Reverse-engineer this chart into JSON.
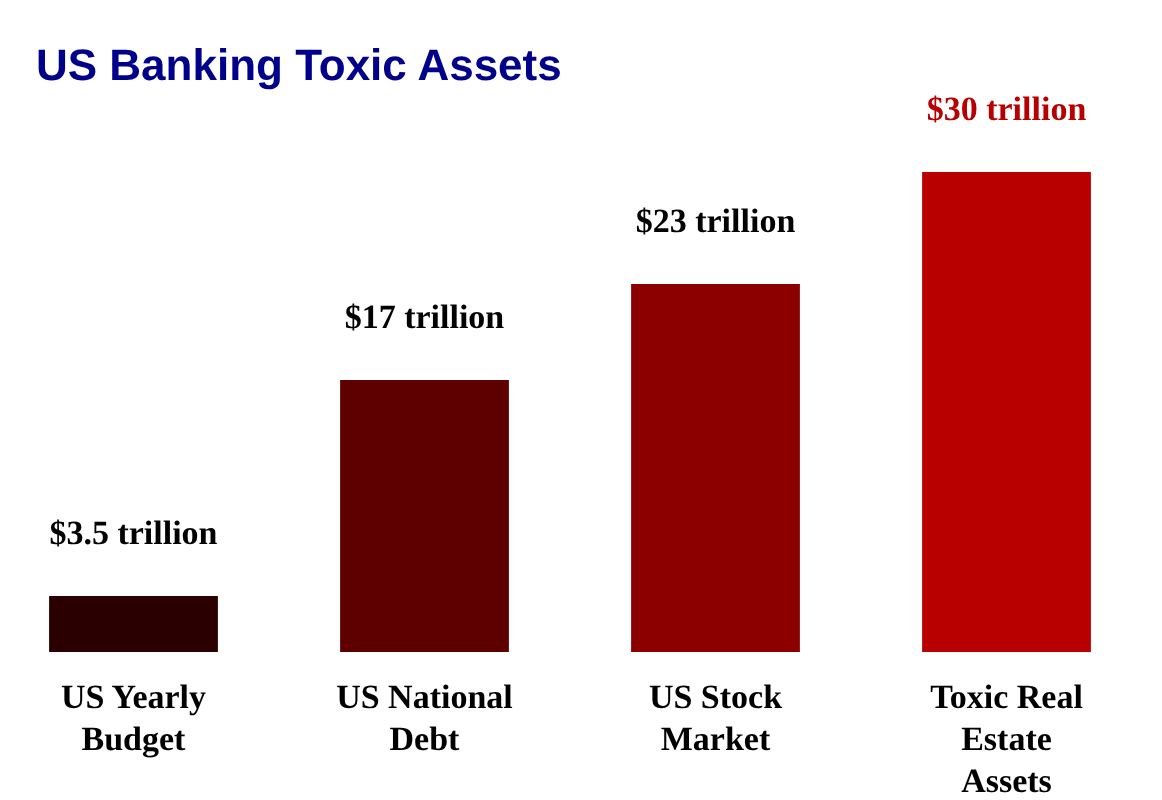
{
  "chart_data": {
    "type": "bar",
    "title": "US Banking Toxic Assets",
    "categories": [
      "US Yearly Budget",
      "US National Debt",
      "US Stock Market",
      "Toxic Real Estate Assets"
    ],
    "values": [
      3.5,
      17,
      23,
      30
    ],
    "colors": [
      "#2a0000",
      "#5e0000",
      "#8c0000",
      "#b80000"
    ],
    "value_labels": [
      "$3.5 trillion",
      "$17 trillion",
      "$23 trillion",
      "$30 trillion"
    ]
  }
}
